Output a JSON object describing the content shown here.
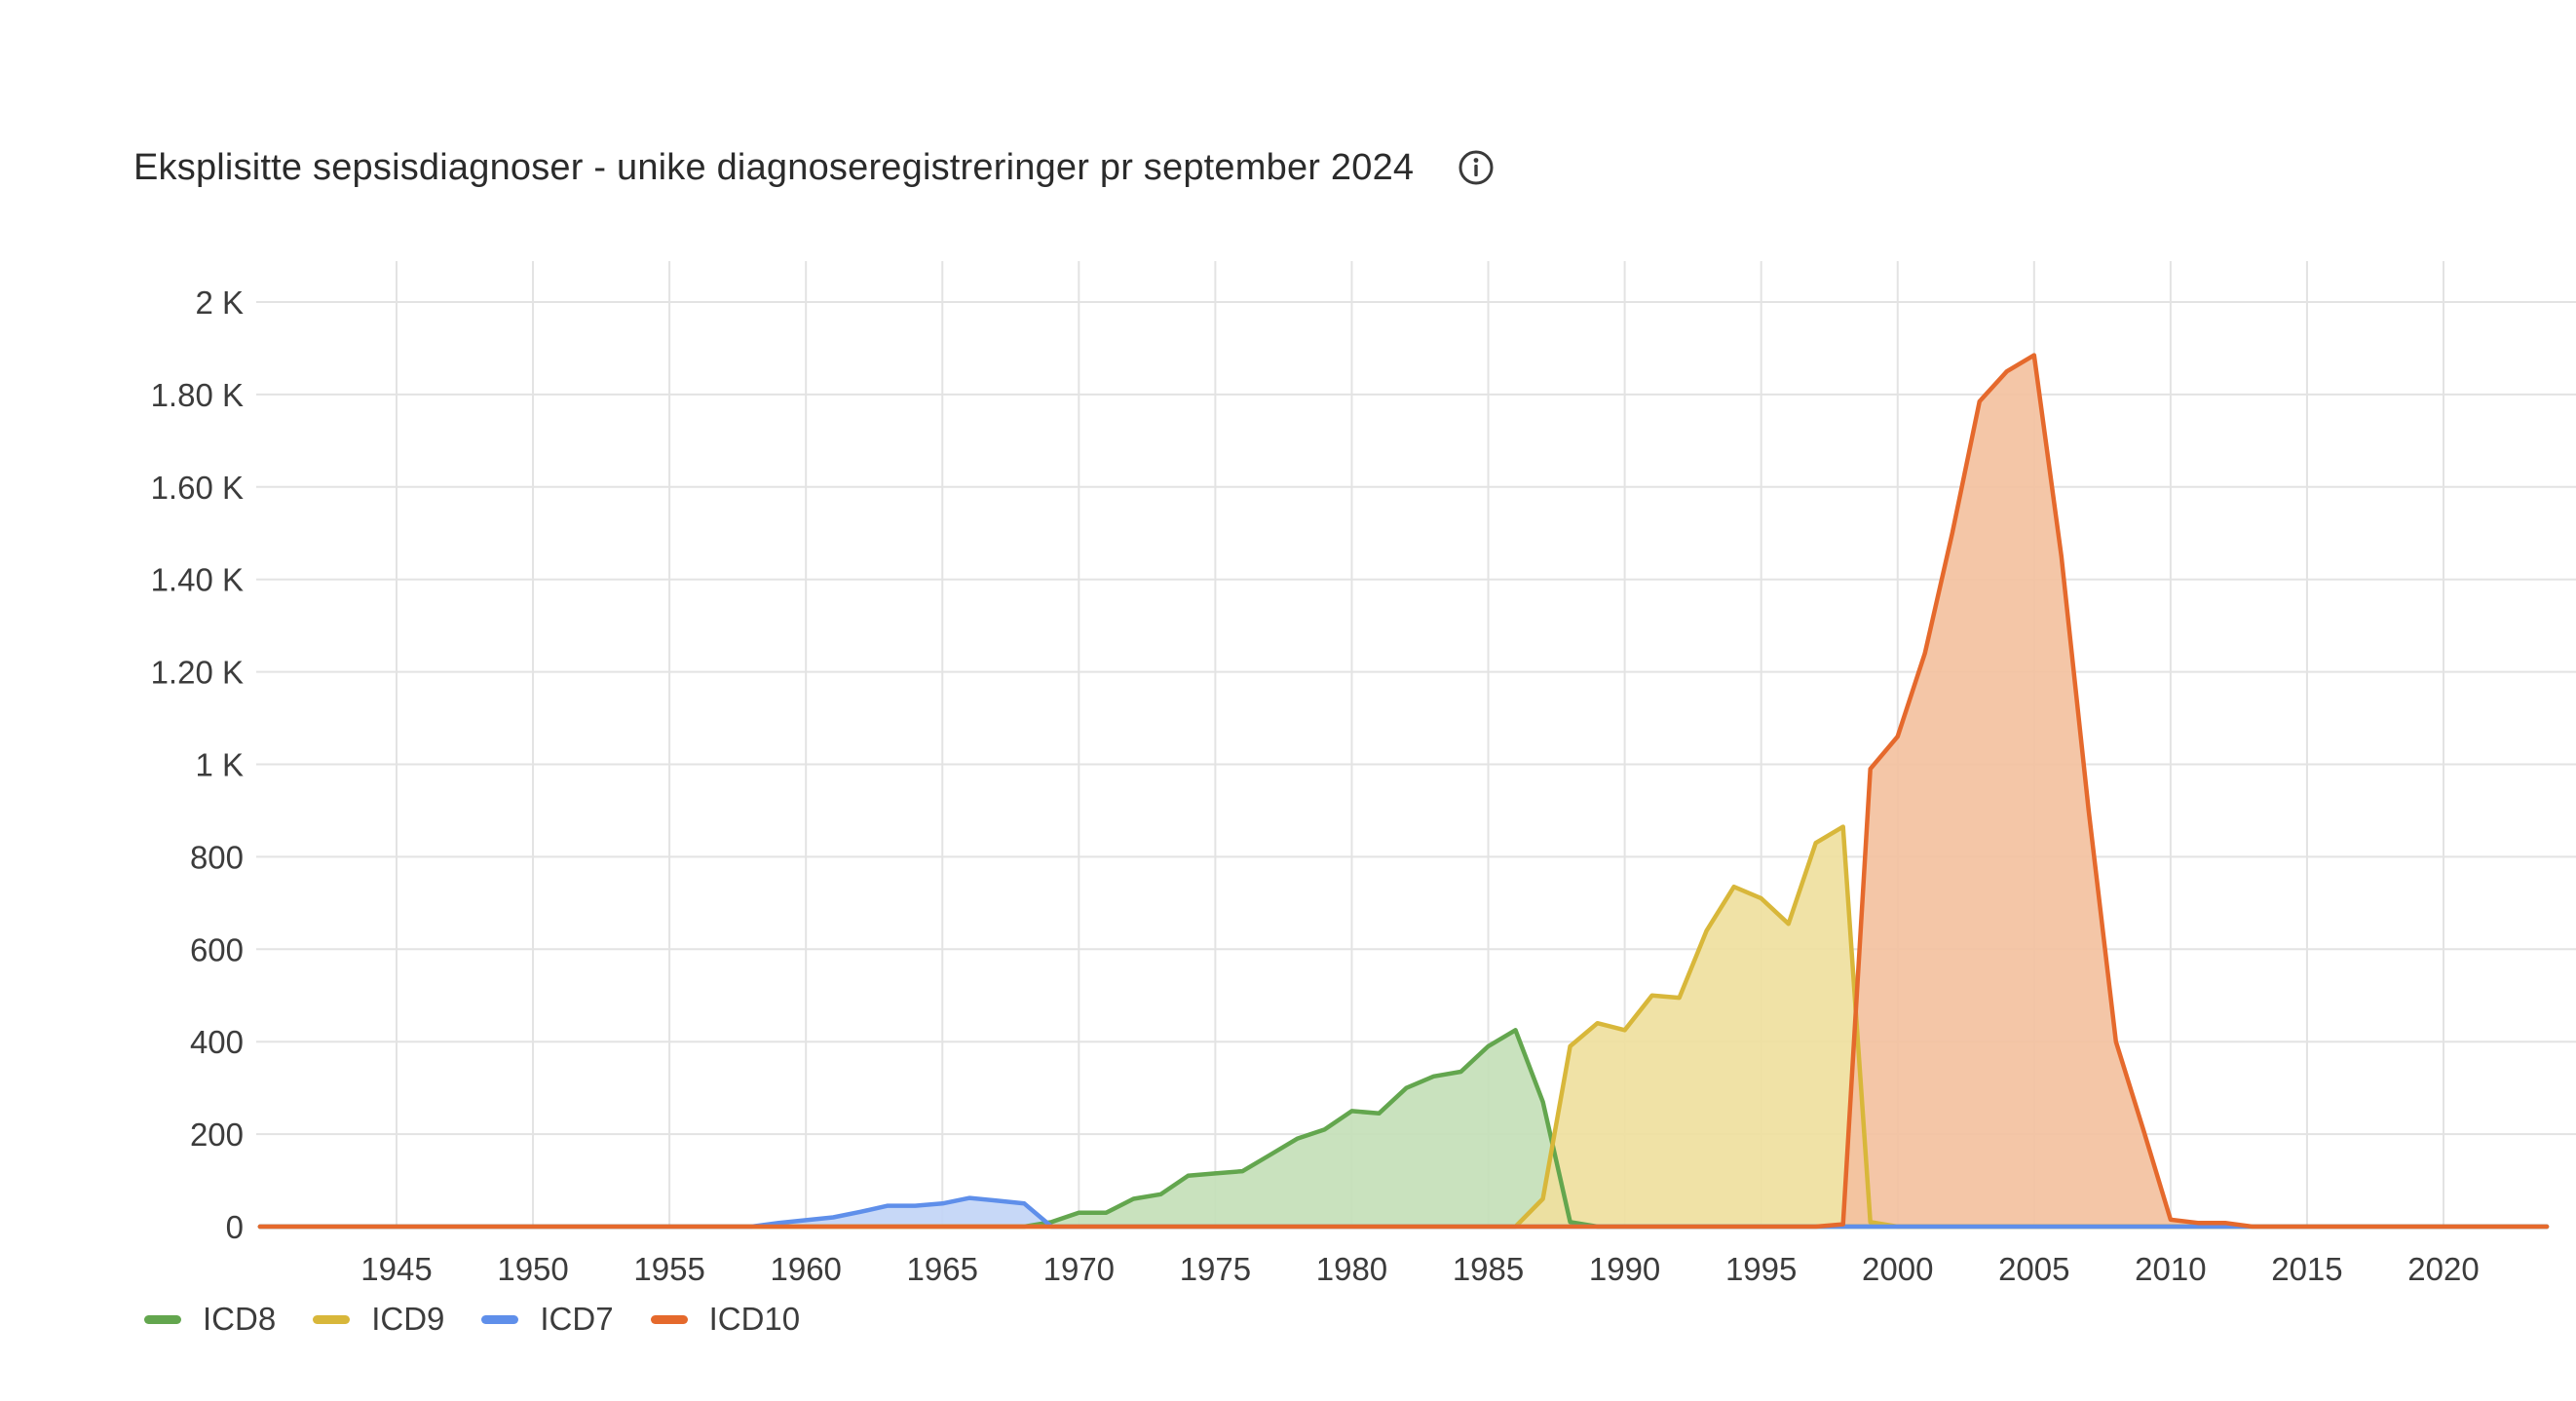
{
  "chart": {
    "title": "Eksplisitte sepsisdiagnoser - unike diagnoseregistreringer pr september 2024",
    "info_icon": "info-circle-icon"
  },
  "chart_data": {
    "type": "area",
    "title": "Eksplisitte sepsisdiagnoser - unike diagnoseregistreringer pr september 2024",
    "xlabel": "",
    "ylabel": "",
    "xlim": [
      1940,
      2024
    ],
    "ylim": [
      0,
      2000
    ],
    "x_ticks": [
      1945,
      1950,
      1955,
      1960,
      1965,
      1970,
      1975,
      1980,
      1985,
      1990,
      1995,
      2000,
      2005,
      2010,
      2015,
      2020
    ],
    "y_ticks": [
      {
        "value": 0,
        "label": "0"
      },
      {
        "value": 200,
        "label": "200"
      },
      {
        "value": 400,
        "label": "400"
      },
      {
        "value": 600,
        "label": "600"
      },
      {
        "value": 800,
        "label": "800"
      },
      {
        "value": 1000,
        "label": "1 K"
      },
      {
        "value": 1200,
        "label": "1.20 K"
      },
      {
        "value": 1400,
        "label": "1.40 K"
      },
      {
        "value": 1600,
        "label": "1.60 K"
      },
      {
        "value": 1800,
        "label": "1.80 K"
      },
      {
        "value": 2000,
        "label": "2 K"
      }
    ],
    "grid": true,
    "legend_position": "bottom-left",
    "series": [
      {
        "name": "ICD8",
        "color": "#63a64e",
        "fill": "#c4dfb9",
        "points": [
          [
            1940,
            0
          ],
          [
            1968,
            0
          ],
          [
            1969,
            10
          ],
          [
            1970,
            30
          ],
          [
            1971,
            30
          ],
          [
            1972,
            60
          ],
          [
            1973,
            70
          ],
          [
            1974,
            110
          ],
          [
            1975,
            115
          ],
          [
            1976,
            120
          ],
          [
            1977,
            155
          ],
          [
            1978,
            190
          ],
          [
            1979,
            210
          ],
          [
            1980,
            250
          ],
          [
            1981,
            245
          ],
          [
            1982,
            300
          ],
          [
            1983,
            325
          ],
          [
            1984,
            335
          ],
          [
            1985,
            390
          ],
          [
            1986,
            425
          ],
          [
            1987,
            270
          ],
          [
            1988,
            10
          ],
          [
            1989,
            0
          ],
          [
            2024,
            0
          ]
        ]
      },
      {
        "name": "ICD9",
        "color": "#d8b73a",
        "fill": "#efe09e",
        "points": [
          [
            1940,
            0
          ],
          [
            1986,
            0
          ],
          [
            1987,
            60
          ],
          [
            1988,
            390
          ],
          [
            1989,
            440
          ],
          [
            1990,
            425
          ],
          [
            1991,
            500
          ],
          [
            1992,
            495
          ],
          [
            1993,
            640
          ],
          [
            1994,
            735
          ],
          [
            1995,
            710
          ],
          [
            1996,
            655
          ],
          [
            1997,
            830
          ],
          [
            1998,
            865
          ],
          [
            1999,
            10
          ],
          [
            2000,
            0
          ],
          [
            2024,
            0
          ]
        ]
      },
      {
        "name": "ICD7",
        "color": "#5f8fea",
        "fill": "#c2d5f6",
        "points": [
          [
            1940,
            0
          ],
          [
            1958,
            0
          ],
          [
            1959,
            8
          ],
          [
            1960,
            14
          ],
          [
            1961,
            20
          ],
          [
            1962,
            32
          ],
          [
            1963,
            45
          ],
          [
            1964,
            45
          ],
          [
            1965,
            50
          ],
          [
            1966,
            62
          ],
          [
            1967,
            56
          ],
          [
            1968,
            50
          ],
          [
            1969,
            0
          ],
          [
            2024,
            0
          ]
        ]
      },
      {
        "name": "ICD10",
        "color": "#e5692c",
        "fill": "#f3c19f",
        "points": [
          [
            1940,
            0
          ],
          [
            1997,
            0
          ],
          [
            1998,
            5
          ],
          [
            1999,
            990
          ],
          [
            2000,
            1060
          ],
          [
            2001,
            1240
          ],
          [
            2002,
            1500
          ],
          [
            2003,
            1785
          ],
          [
            2004,
            1850
          ],
          [
            2005,
            1885
          ],
          [
            2006,
            1450
          ],
          [
            2007,
            900
          ],
          [
            2008,
            400
          ],
          [
            2009,
            210
          ],
          [
            2010,
            15
          ],
          [
            2011,
            8
          ],
          [
            2012,
            8
          ],
          [
            2013,
            0
          ],
          [
            2024,
            0
          ]
        ]
      }
    ]
  },
  "legend": {
    "items": [
      {
        "label": "ICD8",
        "color": "#63a64e"
      },
      {
        "label": "ICD9",
        "color": "#d8b73a"
      },
      {
        "label": "ICD7",
        "color": "#5f8fea"
      },
      {
        "label": "ICD10",
        "color": "#e5692c"
      }
    ]
  }
}
